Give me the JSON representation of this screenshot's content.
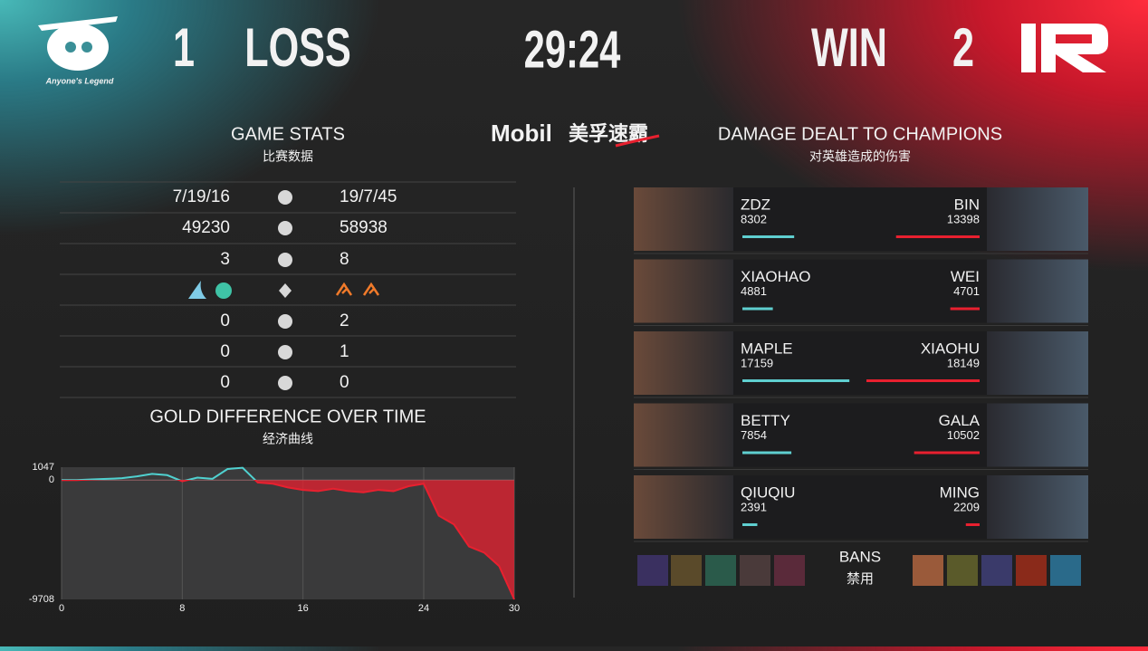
{
  "header": {
    "left_team": "Anyone's Legend",
    "left_score": "1",
    "left_result": "LOSS",
    "time": "29:24",
    "right_result": "WIN",
    "right_score": "2",
    "sponsor": "Mobil",
    "sponsor_cn": "美孚速霸"
  },
  "game_stats": {
    "title": "GAME STATS",
    "subtitle": "比赛数据",
    "rows": [
      [
        "7/19/16",
        "19/7/45"
      ],
      [
        49230,
        58938
      ],
      [
        3,
        8
      ],
      [
        0,
        2
      ],
      [
        0,
        1
      ],
      [
        0,
        0
      ]
    ]
  },
  "damage": {
    "title": "DAMAGE DEALT TO CHAMPIONS",
    "subtitle": "对英雄造成的伤害",
    "rows": [
      {
        "left": {
          "player": "ZDZ",
          "damage": 8302
        },
        "right": {
          "player": "BIN",
          "damage": 13398
        }
      },
      {
        "left": {
          "player": "XIAOHAO",
          "damage": 4881
        },
        "right": {
          "player": "WEI",
          "damage": 4701
        }
      },
      {
        "left": {
          "player": "MAPLE",
          "damage": 17159
        },
        "right": {
          "player": "XIAOHU",
          "damage": 18149
        }
      },
      {
        "left": {
          "player": "BETTY",
          "damage": 7854
        },
        "right": {
          "player": "GALA",
          "damage": 10502
        }
      },
      {
        "left": {
          "player": "QIUQIU",
          "damage": 2391
        },
        "right": {
          "player": "MING",
          "damage": 2209
        }
      }
    ]
  },
  "bans": {
    "label": "BANS",
    "label_cn": "禁用"
  },
  "chart_data": {
    "type": "line",
    "title": "GOLD DIFFERENCE OVER TIME",
    "subtitle": "经济曲线",
    "x": [
      0,
      1,
      2,
      3,
      4,
      5,
      6,
      7,
      8,
      9,
      10,
      11,
      12,
      13,
      14,
      15,
      16,
      17,
      18,
      19,
      20,
      21,
      22,
      23,
      24,
      25,
      26,
      27,
      28,
      29,
      30
    ],
    "values": [
      0,
      0,
      50,
      100,
      150,
      300,
      500,
      400,
      -100,
      200,
      100,
      900,
      1000,
      -200,
      -300,
      -600,
      -800,
      -900,
      -700,
      -900,
      -1000,
      -800,
      -900,
      -500,
      -300,
      -2900,
      -3600,
      -5400,
      -5900,
      -7000,
      -9708
    ],
    "xlim": [
      0,
      30
    ],
    "ylim": [
      -9708,
      1047
    ],
    "xticks": [
      0,
      8,
      16,
      24,
      30
    ],
    "yticks": [
      -9708,
      0,
      1047
    ],
    "grid": true,
    "color_positive": "#4fd1d0",
    "color_negative": "#e8202f"
  }
}
